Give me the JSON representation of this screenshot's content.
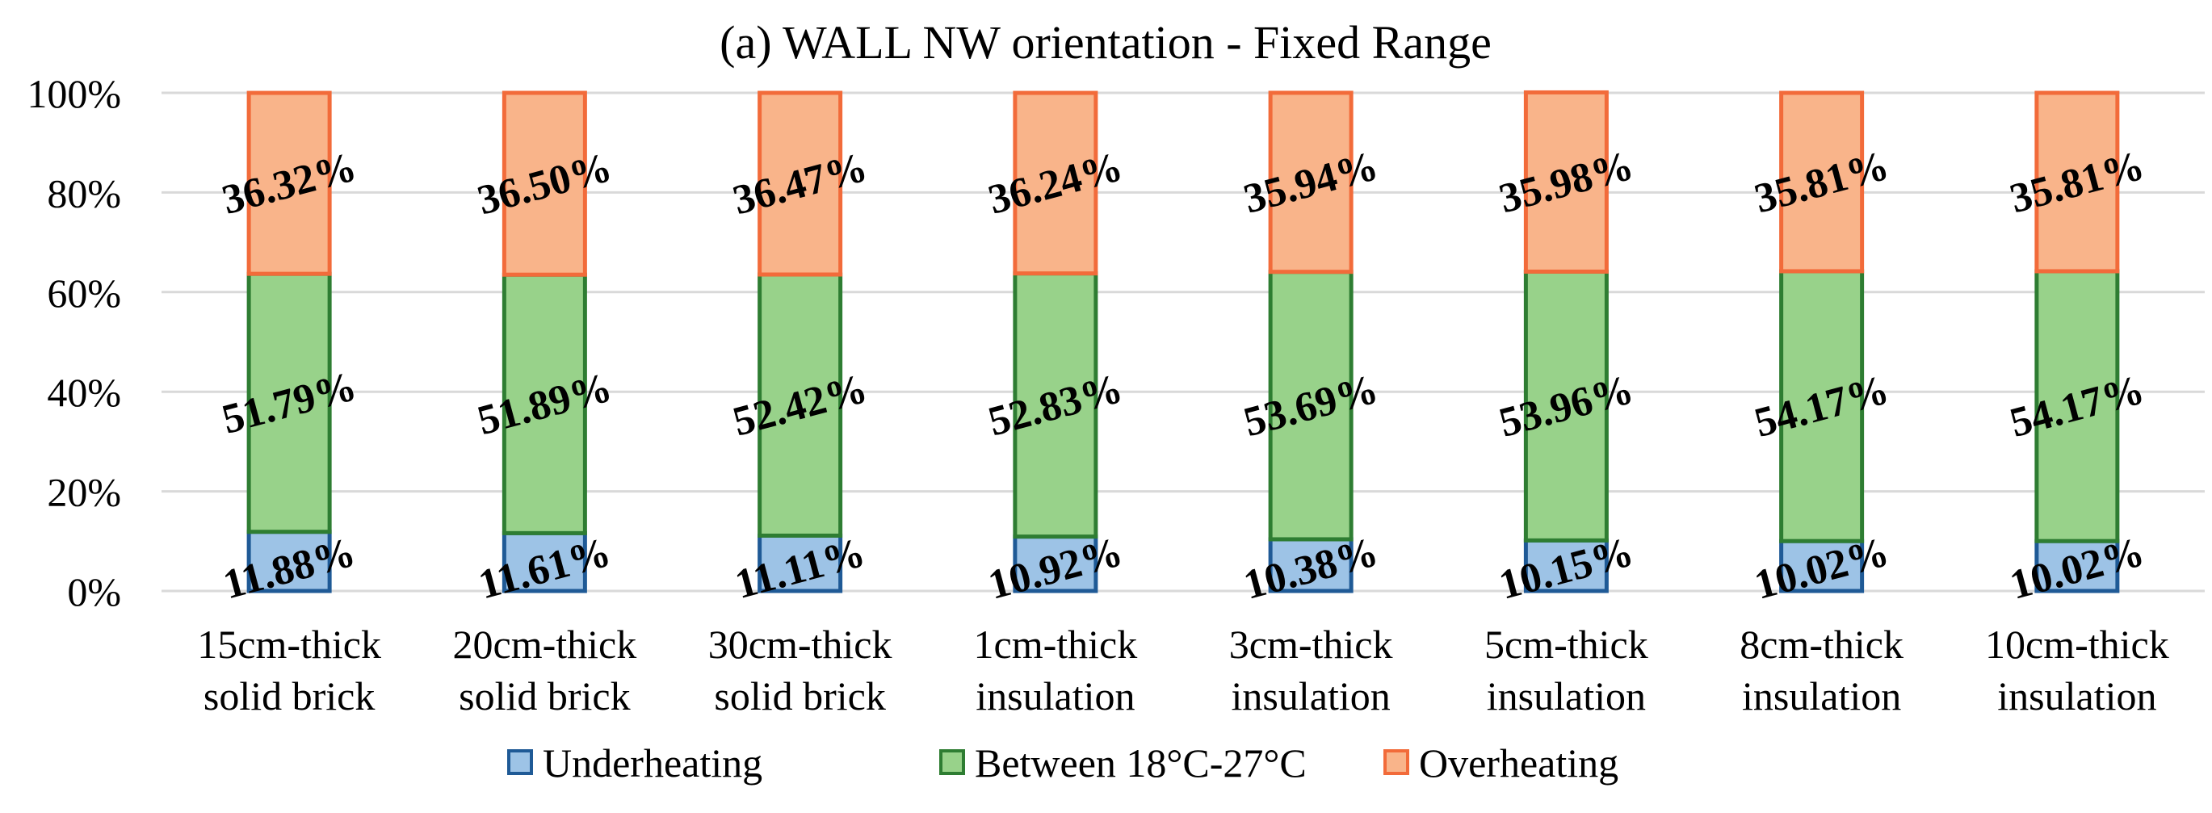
{
  "chart_data": {
    "type": "bar",
    "stacked": true,
    "percent": true,
    "title": "(a) WALL NW orientation - Fixed Range",
    "xlabel": "",
    "ylabel": "",
    "ylim": [
      0,
      100
    ],
    "yticks": [
      "0%",
      "20%",
      "40%",
      "60%",
      "80%",
      "100%"
    ],
    "grid": true,
    "legend_position": "bottom",
    "categories": [
      [
        "15cm-thick",
        "solid brick"
      ],
      [
        "20cm-thick",
        "solid brick"
      ],
      [
        "30cm-thick",
        "solid brick"
      ],
      [
        "1cm-thick",
        "insulation"
      ],
      [
        "3cm-thick",
        "insulation"
      ],
      [
        "5cm-thick",
        "insulation"
      ],
      [
        "8cm-thick",
        "insulation"
      ],
      [
        "10cm-thick",
        "insulation"
      ]
    ],
    "series": [
      {
        "name": "Underheating",
        "fill": "#9dc3e6",
        "stroke": "#1f5a96",
        "values": [
          11.88,
          11.61,
          11.11,
          10.92,
          10.38,
          10.15,
          10.02,
          10.02
        ],
        "labels": [
          "11.88%",
          "11.61%",
          "11.11%",
          "10.92%",
          "10.38%",
          "10.15%",
          "10.02%",
          "10.02%"
        ]
      },
      {
        "name": "Between 18°C-27°C",
        "fill": "#98d28a",
        "stroke": "#2e7d32",
        "values": [
          51.79,
          51.89,
          52.42,
          52.83,
          53.69,
          53.96,
          54.17,
          54.17
        ],
        "labels": [
          "51.79%",
          "51.89%",
          "52.42%",
          "52.83%",
          "53.69%",
          "53.96%",
          "54.17%",
          "54.17%"
        ]
      },
      {
        "name": "Overheating",
        "fill": "#f9b48a",
        "stroke": "#f26b3a",
        "values": [
          36.32,
          36.5,
          36.47,
          36.24,
          35.94,
          35.98,
          35.81,
          35.81
        ],
        "labels": [
          "36.32%",
          "36.50%",
          "36.47%",
          "36.24%",
          "35.94%",
          "35.98%",
          "35.81%",
          "35.81%"
        ]
      }
    ]
  }
}
